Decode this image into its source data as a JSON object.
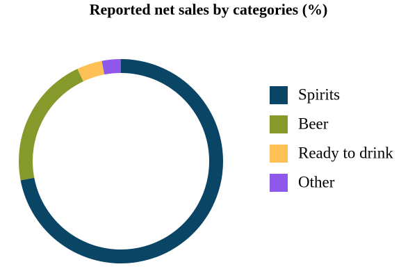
{
  "chart_data": {
    "type": "donut",
    "title": "Reported net sales by categories (%)",
    "categories": [
      "Spirits",
      "Beer",
      "Ready to drink",
      "Other"
    ],
    "values": [
      72,
      21,
      4,
      3
    ],
    "colors": [
      "#0b4566",
      "#859a2b",
      "#fdc158",
      "#8e58ec"
    ],
    "legend": "right"
  }
}
